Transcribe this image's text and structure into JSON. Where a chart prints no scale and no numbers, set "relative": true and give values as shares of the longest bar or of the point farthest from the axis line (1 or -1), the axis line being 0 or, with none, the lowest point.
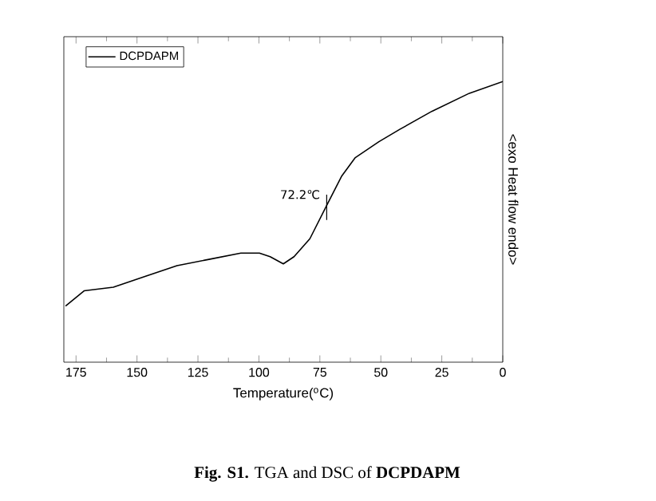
{
  "chart_data": {
    "type": "line",
    "relative": true,
    "xlabel": "Temperature($^{o}$C)",
    "ylabel": "<exo Heat flow endo>",
    "x": [
      179.3,
      171.7,
      159.7,
      146.7,
      133.6,
      120.5,
      107.4,
      99.8,
      95.4,
      90,
      85.6,
      79.1,
      72.6,
      66,
      60.6,
      50.8,
      42.1,
      29,
      13.7,
      0
    ],
    "series": [
      {
        "name": "DCPDAPM",
        "color": "#000000",
        "values": [
          0,
          0.068,
          0.084,
          0.132,
          0.18,
          0.208,
          0.236,
          0.236,
          0.22,
          0.188,
          0.22,
          0.3,
          0.44,
          0.58,
          0.66,
          0.732,
          0.788,
          0.868,
          0.948,
          1.0
        ]
      }
    ],
    "xlim": [
      180,
      0
    ],
    "xticks": [
      0,
      25,
      50,
      75,
      100,
      125,
      150,
      175
    ],
    "tick_labels": "x",
    "legend": "top left",
    "grid": false,
    "annotations": [
      {
        "text": "72.2℃",
        "x": 72.2,
        "y": 0.44
      },
      "**Fig. S1.** TGA and DSC of **DCPDAPM**"
    ]
  }
}
